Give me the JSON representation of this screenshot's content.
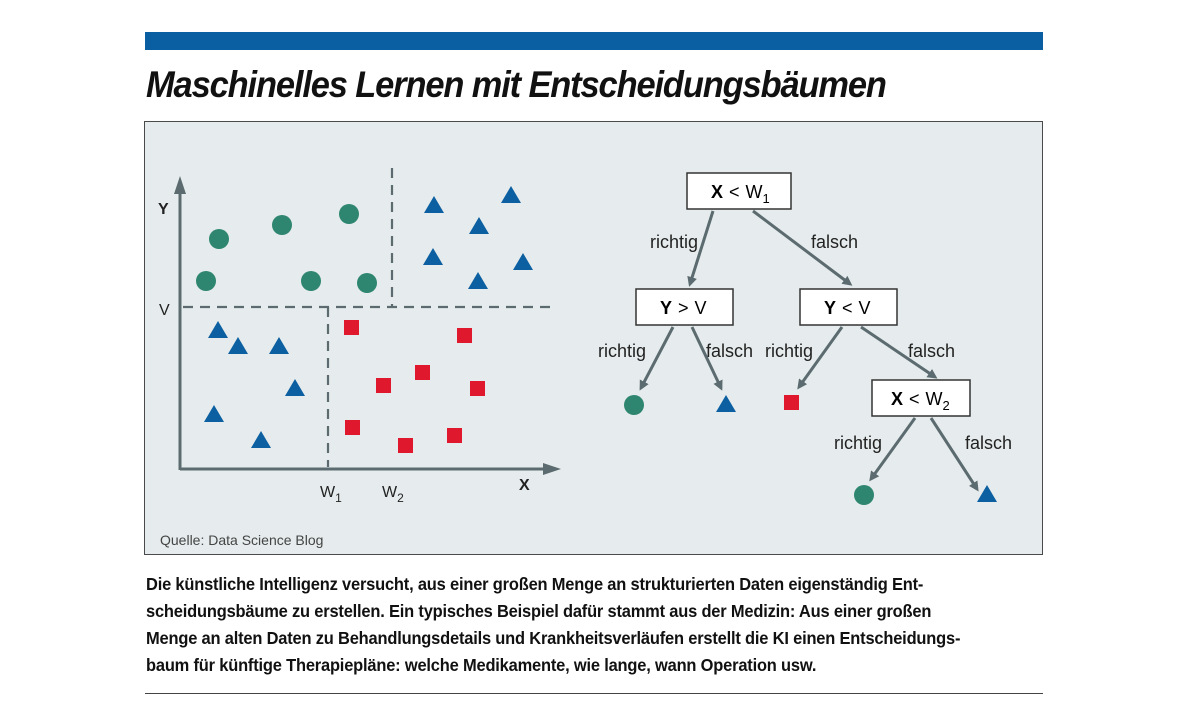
{
  "title": "Maschinelles Lernen mit Entscheidungsbäumen",
  "source": "Quelle: Data Science Blog",
  "colors": {
    "accent_bar": "#0a5fa3",
    "circle": "#2e8670",
    "triangle": "#0c5fa0",
    "square": "#e0182d",
    "figure_bg": "#e6eced",
    "arrow": "#5b6b70"
  },
  "scatter": {
    "y_axis_label": "Y",
    "x_axis_label": "X",
    "v_label": "V",
    "w1": {
      "main": "W",
      "sub": "1"
    },
    "w2": {
      "main": "W",
      "sub": "2"
    }
  },
  "tree": {
    "root": {
      "var": "X",
      "op": "<",
      "thr": "W",
      "sub": "1"
    },
    "left": {
      "var": "Y",
      "op": ">",
      "thr": "V",
      "sub": ""
    },
    "right": {
      "var": "Y",
      "op": "<",
      "thr": "V",
      "sub": ""
    },
    "right_right": {
      "var": "X",
      "op": "<",
      "thr": "W",
      "sub": "2"
    },
    "edge_true": "richtig",
    "edge_false": "falsch"
  },
  "caption_lines": [
    "Die künstliche Intelligenz versucht, aus einer großen Menge an strukturierten Daten eigenständig Ent-",
    "scheidungsbäume zu erstellen. Ein typisches Beispiel dafür stammt aus der Medizin: Aus einer großen",
    "Menge an alten Daten zu Behandlungsdetails und Krankheitsverläufen erstellt die KI einen Entscheidungs-",
    "baum für künftige Therapiepläne: welche Medikamente, wie lange, wann Operation usw."
  ]
}
